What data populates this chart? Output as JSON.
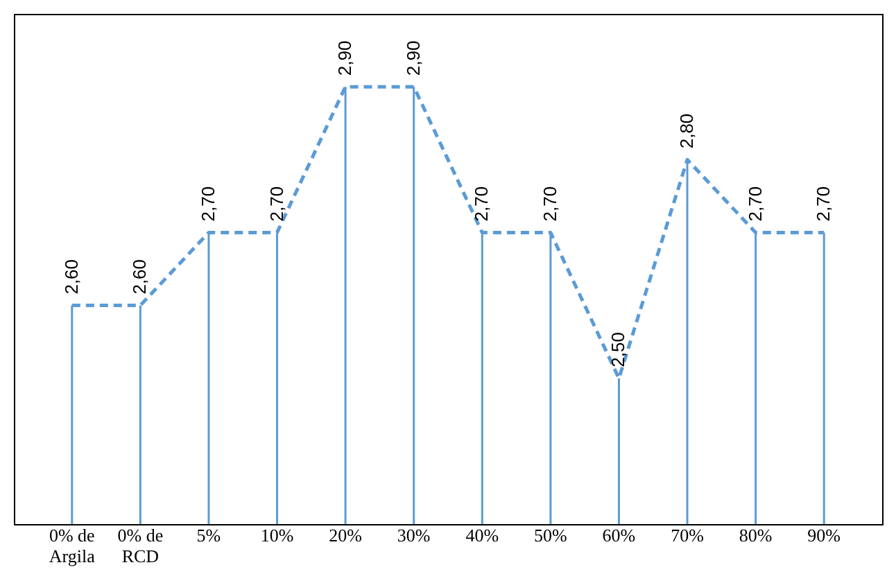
{
  "chart_data": {
    "type": "bar",
    "categories": [
      "0% de\nArgila",
      "0% de\nRCD",
      "5%",
      "10%",
      "20%",
      "30%",
      "40%",
      "50%",
      "60%",
      "70%",
      "80%",
      "90%"
    ],
    "series": [
      {
        "color": "#5b9bd5",
        "values": [
          2.6,
          2.6,
          2.7,
          2.7,
          2.9,
          2.9,
          2.7,
          2.7,
          2.5,
          2.8,
          2.7,
          2.7
        ]
      },
      {
        "type": "line",
        "color": "#5b9bd5",
        "line_style": "dashed",
        "marker": "none",
        "values": [
          2.6,
          2.6,
          2.7,
          2.7,
          2.9,
          2.9,
          2.7,
          2.7,
          2.5,
          2.8,
          2.7,
          2.7
        ],
        "value_labels": [
          "2,60",
          "2,60",
          "2,70",
          "2,70",
          "2,90",
          "2,90",
          "2,70",
          "2,70",
          "2,50",
          "2,80",
          "2,70",
          "2,70"
        ]
      }
    ],
    "ylim": [
      2.3,
      3.0
    ],
    "tick_labels": "x"
  }
}
